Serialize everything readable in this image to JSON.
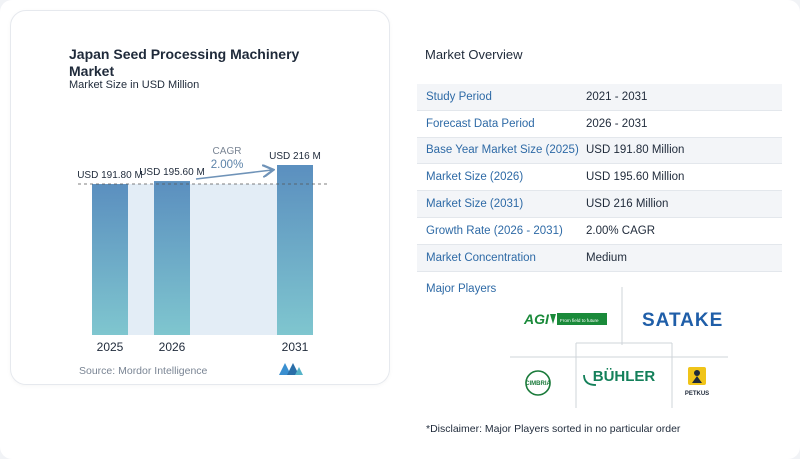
{
  "chart": {
    "title": "Japan Seed Processing Machinery Market",
    "subtitle": "Market Size in USD Million",
    "source": "Source:  Mordor Intelligence",
    "cagr_label": "CAGR",
    "cagr_value": "2.00%"
  },
  "chart_data": {
    "type": "bar",
    "title": "Japan Seed Processing Machinery Market",
    "subtitle": "Market Size in USD Million",
    "categories": [
      "2025",
      "2026",
      "2031"
    ],
    "values": [
      191.8,
      195.6,
      216
    ],
    "data_labels": [
      "USD 191.80 M",
      "USD 195.60 M",
      "USD 216 M"
    ],
    "ylim": [
      0,
      216
    ],
    "grid": false,
    "annotation": "CAGR 2.00%",
    "colors": {
      "bar_top": "#5b8fbf",
      "bar_bottom": "#7fc6cf",
      "band": "#e3edf6",
      "arrow": "#6f93b8"
    }
  },
  "overview": {
    "title": "Market Overview",
    "rows": [
      {
        "label": "Study Period",
        "value": "2021 - 2031"
      },
      {
        "label": "Forecast Data Period",
        "value": "2026 - 2031"
      },
      {
        "label": "Base Year Market Size (2025)",
        "value": "USD 191.80 Million"
      },
      {
        "label": "Market Size (2026)",
        "value": "USD 195.60 Million"
      },
      {
        "label": "Market Size (2031)",
        "value": "USD 216 Million"
      },
      {
        "label": "Growth Rate (2026 - 2031)",
        "value": "2.00% CAGR"
      },
      {
        "label": "Market Concentration",
        "value": "Medium"
      }
    ]
  },
  "players": {
    "title": "Major Players",
    "logos": [
      {
        "name": "AGI",
        "tagline": "From field to future",
        "color": "#1a8a3a"
      },
      {
        "name": "SATAKE",
        "color": "#1f5ea8"
      },
      {
        "name": "CIMBRIA",
        "color": "#1a7a3a"
      },
      {
        "name": "BÜHLER",
        "color": "#14805a"
      },
      {
        "name": "PETKUS",
        "color": "#1f2a3a"
      }
    ]
  },
  "disclaimer": "*Disclaimer: Major Players sorted in no particular order"
}
